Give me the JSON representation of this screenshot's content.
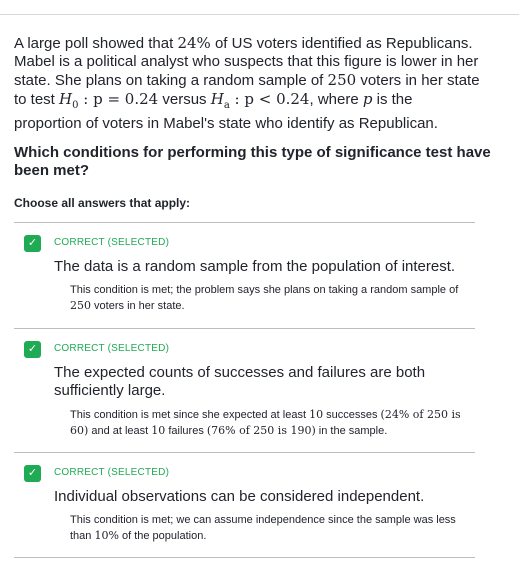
{
  "question": {
    "p1": "A large poll showed that ",
    "m1": "24%",
    "p2": " of US voters identified as Republicans. Mabel is a political analyst who suspects that this figure is lower in her state. She plans on taking a random sample of ",
    "m2": "250",
    "p3": " voters in her state to test ",
    "h0": "H",
    "h0_sub": "0",
    "h0_rest": " : p = 0.24",
    "p4": " versus ",
    "ha": "H",
    "ha_sub": "a",
    "ha_rest": " : p < 0.24",
    "p5": ", where ",
    "pvar": "p",
    "p6": " is the proportion of voters in Mabel's state who identify as Republican."
  },
  "prompt": "Which conditions for performing this type of significance test have been met?",
  "choose_label": "Choose all answers that apply:",
  "choices": [
    {
      "status": "CORRECT (SELECTED)",
      "text": "The data is a random sample from the population of interest.",
      "r1": "This condition is met; the problem says she plans on taking a random sample of ",
      "r1m": "250",
      "r1b": " voters in her state."
    },
    {
      "status": "CORRECT (SELECTED)",
      "text": "The expected counts of successes and failures are both sufficiently large.",
      "r1": "This condition is met since she expected at least ",
      "m10a": "10",
      "r2": " successes ",
      "m24": "(24% of 250 is 60)",
      "r3": " and at least ",
      "m10b": "10",
      "r4": " failures ",
      "m76": "(76% of 250 is 190)",
      "r5": " in the sample."
    },
    {
      "status": "CORRECT (SELECTED)",
      "text": "Individual observations can be considered independent.",
      "r1": "This condition is met; we can assume independence since the sample was less than ",
      "m10": "10%",
      "r2": " of the population."
    }
  ],
  "colors": {
    "correct": "#1fab54",
    "text": "#21242c",
    "rule": "#babec2"
  },
  "icons": {
    "check": "check-icon"
  }
}
